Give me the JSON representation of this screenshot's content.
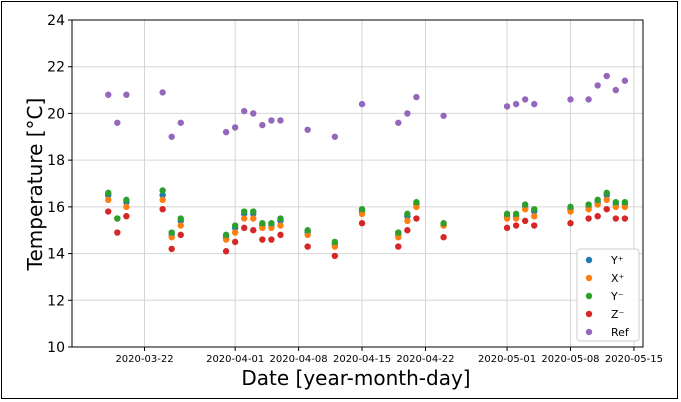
{
  "chart_data": {
    "type": "scatter",
    "title": "",
    "xlabel": "Date [year-month-day]",
    "ylabel": "Temperature [°C]",
    "ylim": [
      10,
      24
    ],
    "xlim": [
      "2020-03-14",
      "2020-05-16"
    ],
    "yticks": [
      10,
      12,
      14,
      16,
      18,
      20,
      22,
      24
    ],
    "xticks": [
      "2020-03-22",
      "2020-04-01",
      "2020-04-08",
      "2020-04-15",
      "2020-04-22",
      "2020-05-01",
      "2020-05-08",
      "2020-05-15"
    ],
    "grid": true,
    "legend_position": "lower-right",
    "series": [
      {
        "name": "Y⁺",
        "color": "#1f77b4",
        "points": [
          [
            "2020-03-18",
            16.5
          ],
          [
            "2020-03-19",
            15.5
          ],
          [
            "2020-03-20",
            16.2
          ],
          [
            "2020-03-24",
            16.5
          ],
          [
            "2020-03-25",
            14.8
          ],
          [
            "2020-03-26",
            15.4
          ],
          [
            "2020-03-31",
            14.7
          ],
          [
            "2020-04-01",
            15.1
          ],
          [
            "2020-04-02",
            15.7
          ],
          [
            "2020-04-03",
            15.7
          ],
          [
            "2020-04-04",
            15.2
          ],
          [
            "2020-04-05",
            15.2
          ],
          [
            "2020-04-06",
            15.4
          ],
          [
            "2020-04-09",
            14.9
          ],
          [
            "2020-04-12",
            14.4
          ],
          [
            "2020-04-15",
            15.8
          ],
          [
            "2020-04-19",
            14.8
          ],
          [
            "2020-04-20",
            15.6
          ],
          [
            "2020-04-21",
            16.1
          ],
          [
            "2020-04-24",
            15.2
          ],
          [
            "2020-05-01",
            15.6
          ],
          [
            "2020-05-02",
            15.6
          ],
          [
            "2020-05-03",
            16.0
          ],
          [
            "2020-05-04",
            15.8
          ],
          [
            "2020-05-08",
            15.9
          ],
          [
            "2020-05-10",
            16.0
          ],
          [
            "2020-05-11",
            16.2
          ],
          [
            "2020-05-12",
            16.5
          ],
          [
            "2020-05-13",
            16.1
          ],
          [
            "2020-05-14",
            16.1
          ]
        ]
      },
      {
        "name": "X⁺",
        "color": "#ff7f0e",
        "points": [
          [
            "2020-03-18",
            16.3
          ],
          [
            "2020-03-19",
            15.5
          ],
          [
            "2020-03-20",
            16.0
          ],
          [
            "2020-03-24",
            16.3
          ],
          [
            "2020-03-25",
            14.7
          ],
          [
            "2020-03-26",
            15.2
          ],
          [
            "2020-03-31",
            14.6
          ],
          [
            "2020-04-01",
            14.9
          ],
          [
            "2020-04-02",
            15.5
          ],
          [
            "2020-04-03",
            15.5
          ],
          [
            "2020-04-04",
            15.1
          ],
          [
            "2020-04-05",
            15.1
          ],
          [
            "2020-04-06",
            15.2
          ],
          [
            "2020-04-09",
            14.8
          ],
          [
            "2020-04-12",
            14.3
          ],
          [
            "2020-04-15",
            15.7
          ],
          [
            "2020-04-19",
            14.7
          ],
          [
            "2020-04-20",
            15.4
          ],
          [
            "2020-04-21",
            16.0
          ],
          [
            "2020-04-24",
            15.2
          ],
          [
            "2020-05-01",
            15.5
          ],
          [
            "2020-05-02",
            15.5
          ],
          [
            "2020-05-03",
            15.9
          ],
          [
            "2020-05-04",
            15.6
          ],
          [
            "2020-05-08",
            15.8
          ],
          [
            "2020-05-10",
            15.9
          ],
          [
            "2020-05-11",
            16.1
          ],
          [
            "2020-05-12",
            16.3
          ],
          [
            "2020-05-13",
            16.0
          ],
          [
            "2020-05-14",
            16.0
          ]
        ]
      },
      {
        "name": "Y⁻",
        "color": "#2ca02c",
        "points": [
          [
            "2020-03-18",
            16.6
          ],
          [
            "2020-03-19",
            15.5
          ],
          [
            "2020-03-20",
            16.3
          ],
          [
            "2020-03-24",
            16.7
          ],
          [
            "2020-03-25",
            14.9
          ],
          [
            "2020-03-26",
            15.5
          ],
          [
            "2020-03-31",
            14.8
          ],
          [
            "2020-04-01",
            15.2
          ],
          [
            "2020-04-02",
            15.8
          ],
          [
            "2020-04-03",
            15.8
          ],
          [
            "2020-04-04",
            15.3
          ],
          [
            "2020-04-05",
            15.3
          ],
          [
            "2020-04-06",
            15.5
          ],
          [
            "2020-04-09",
            15.0
          ],
          [
            "2020-04-12",
            14.5
          ],
          [
            "2020-04-15",
            15.9
          ],
          [
            "2020-04-19",
            14.9
          ],
          [
            "2020-04-20",
            15.7
          ],
          [
            "2020-04-21",
            16.2
          ],
          [
            "2020-04-24",
            15.3
          ],
          [
            "2020-05-01",
            15.7
          ],
          [
            "2020-05-02",
            15.7
          ],
          [
            "2020-05-03",
            16.1
          ],
          [
            "2020-05-04",
            15.9
          ],
          [
            "2020-05-08",
            16.0
          ],
          [
            "2020-05-10",
            16.1
          ],
          [
            "2020-05-11",
            16.3
          ],
          [
            "2020-05-12",
            16.6
          ],
          [
            "2020-05-13",
            16.2
          ],
          [
            "2020-05-14",
            16.2
          ]
        ]
      },
      {
        "name": "Z⁻",
        "color": "#d62728",
        "points": [
          [
            "2020-03-18",
            15.8
          ],
          [
            "2020-03-19",
            14.9
          ],
          [
            "2020-03-20",
            15.6
          ],
          [
            "2020-03-24",
            15.9
          ],
          [
            "2020-03-25",
            14.2
          ],
          [
            "2020-03-26",
            14.8
          ],
          [
            "2020-03-31",
            14.1
          ],
          [
            "2020-04-01",
            14.5
          ],
          [
            "2020-04-02",
            15.1
          ],
          [
            "2020-04-03",
            15.0
          ],
          [
            "2020-04-04",
            14.6
          ],
          [
            "2020-04-05",
            14.6
          ],
          [
            "2020-04-06",
            14.8
          ],
          [
            "2020-04-09",
            14.3
          ],
          [
            "2020-04-12",
            13.9
          ],
          [
            "2020-04-15",
            15.3
          ],
          [
            "2020-04-19",
            14.3
          ],
          [
            "2020-04-20",
            15.0
          ],
          [
            "2020-04-21",
            15.5
          ],
          [
            "2020-04-24",
            14.7
          ],
          [
            "2020-05-01",
            15.1
          ],
          [
            "2020-05-02",
            15.2
          ],
          [
            "2020-05-03",
            15.4
          ],
          [
            "2020-05-04",
            15.2
          ],
          [
            "2020-05-08",
            15.3
          ],
          [
            "2020-05-10",
            15.5
          ],
          [
            "2020-05-11",
            15.6
          ],
          [
            "2020-05-12",
            15.9
          ],
          [
            "2020-05-13",
            15.5
          ],
          [
            "2020-05-14",
            15.5
          ]
        ]
      },
      {
        "name": "Ref",
        "color": "#9467bd",
        "points": [
          [
            "2020-03-18",
            20.8
          ],
          [
            "2020-03-19",
            19.6
          ],
          [
            "2020-03-20",
            20.8
          ],
          [
            "2020-03-24",
            20.9
          ],
          [
            "2020-03-25",
            19.0
          ],
          [
            "2020-03-26",
            19.6
          ],
          [
            "2020-03-31",
            19.2
          ],
          [
            "2020-04-01",
            19.4
          ],
          [
            "2020-04-02",
            20.1
          ],
          [
            "2020-04-03",
            20.0
          ],
          [
            "2020-04-04",
            19.5
          ],
          [
            "2020-04-05",
            19.7
          ],
          [
            "2020-04-06",
            19.7
          ],
          [
            "2020-04-09",
            19.3
          ],
          [
            "2020-04-12",
            19.0
          ],
          [
            "2020-04-15",
            20.4
          ],
          [
            "2020-04-19",
            19.6
          ],
          [
            "2020-04-20",
            20.0
          ],
          [
            "2020-04-21",
            20.7
          ],
          [
            "2020-04-24",
            19.9
          ],
          [
            "2020-05-01",
            20.3
          ],
          [
            "2020-05-02",
            20.4
          ],
          [
            "2020-05-03",
            20.6
          ],
          [
            "2020-05-04",
            20.4
          ],
          [
            "2020-05-08",
            20.6
          ],
          [
            "2020-05-10",
            20.6
          ],
          [
            "2020-05-11",
            21.2
          ],
          [
            "2020-05-12",
            21.6
          ],
          [
            "2020-05-13",
            21.0
          ],
          [
            "2020-05-14",
            21.4
          ]
        ]
      }
    ]
  }
}
